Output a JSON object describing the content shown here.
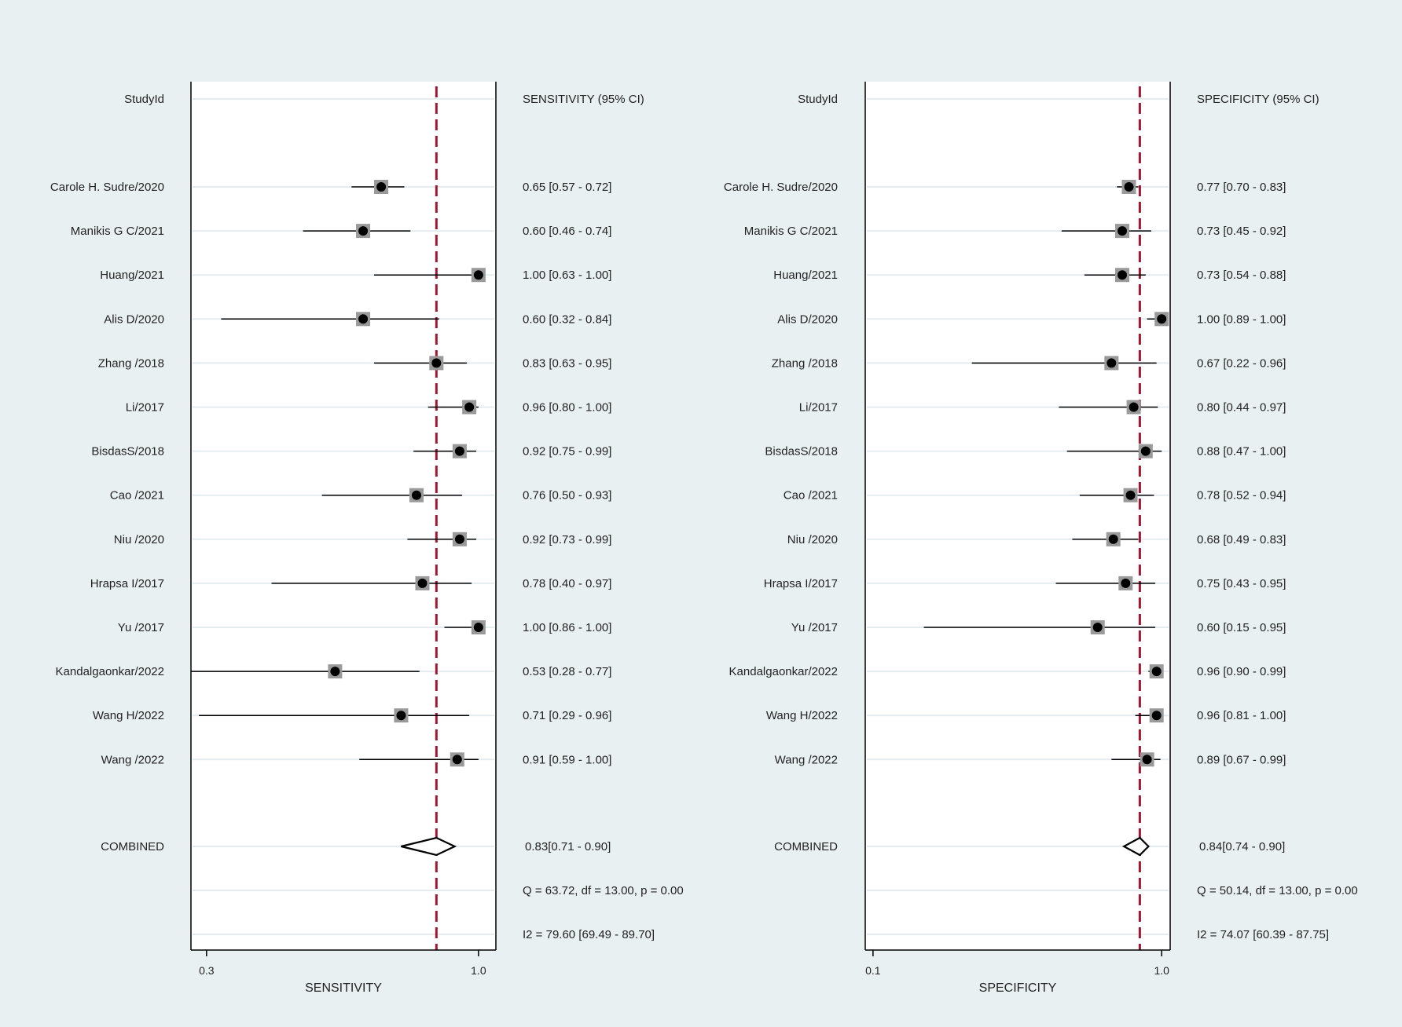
{
  "chart_data": [
    {
      "type": "forest",
      "measure": "sensitivity",
      "study_header": "StudyId",
      "ci_header": "SENSITIVITY (95% CI)",
      "xlabel": "SENSITIVITY",
      "scale": "log",
      "xlim": [
        0.28,
        1.08
      ],
      "ticks": [
        {
          "value": 0.3,
          "label": "0.3"
        },
        {
          "value": 1.0,
          "label": "1.0"
        }
      ],
      "reference_line": 0.83,
      "studies": [
        {
          "name": "Carole H. Sudre/2020",
          "est": 0.65,
          "lo": 0.57,
          "hi": 0.72,
          "text": "0.65 [0.57 - 0.72]"
        },
        {
          "name": "Manikis G C/2021",
          "est": 0.6,
          "lo": 0.46,
          "hi": 0.74,
          "text": "0.60 [0.46 - 0.74]"
        },
        {
          "name": "Huang/2021",
          "est": 1.0,
          "lo": 0.63,
          "hi": 1.0,
          "text": "1.00 [0.63 - 1.00]"
        },
        {
          "name": "Alis D/2020",
          "est": 0.6,
          "lo": 0.32,
          "hi": 0.84,
          "text": "0.60 [0.32 - 0.84]"
        },
        {
          "name": "Zhang /2018",
          "est": 0.83,
          "lo": 0.63,
          "hi": 0.95,
          "text": "0.83 [0.63 - 0.95]"
        },
        {
          "name": "Li/2017",
          "est": 0.96,
          "lo": 0.8,
          "hi": 1.0,
          "text": "0.96 [0.80 - 1.00]"
        },
        {
          "name": "BisdasS/2018",
          "est": 0.92,
          "lo": 0.75,
          "hi": 0.99,
          "text": "0.92 [0.75 - 0.99]"
        },
        {
          "name": "Cao /2021",
          "est": 0.76,
          "lo": 0.5,
          "hi": 0.93,
          "text": "0.76 [0.50 - 0.93]"
        },
        {
          "name": "Niu /2020",
          "est": 0.92,
          "lo": 0.73,
          "hi": 0.99,
          "text": "0.92 [0.73 - 0.99]"
        },
        {
          "name": "Hrapsa I/2017",
          "est": 0.78,
          "lo": 0.4,
          "hi": 0.97,
          "text": "0.78 [0.40 - 0.97]"
        },
        {
          "name": "Yu /2017",
          "est": 1.0,
          "lo": 0.86,
          "hi": 1.0,
          "text": "1.00 [0.86 - 1.00]"
        },
        {
          "name": "Kandalgaonkar/2022",
          "est": 0.53,
          "lo": 0.28,
          "hi": 0.77,
          "text": "0.53 [0.28 - 0.77]"
        },
        {
          "name": "Wang H/2022",
          "est": 0.71,
          "lo": 0.29,
          "hi": 0.96,
          "text": "0.71 [0.29 - 0.96]"
        },
        {
          "name": "Wang /2022",
          "est": 0.91,
          "lo": 0.59,
          "hi": 1.0,
          "text": "0.91 [0.59 - 1.00]"
        }
      ],
      "combined": {
        "name": "COMBINED",
        "est": 0.83,
        "lo": 0.71,
        "hi": 0.9,
        "text": "0.83[0.71 - 0.90]"
      },
      "q_stat": "Q = 63.72, df = 13.00, p =  0.00",
      "i2_stat": "I2 = 79.60 [69.49 - 89.70]"
    },
    {
      "type": "forest",
      "measure": "specificity",
      "study_header": "StudyId",
      "ci_header": "SPECIFICITY (95% CI)",
      "xlabel": "SPECIFICITY",
      "scale": "log",
      "xlim": [
        0.094,
        1.07
      ],
      "ticks": [
        {
          "value": 0.1,
          "label": "0.1"
        },
        {
          "value": 1.0,
          "label": "1.0"
        }
      ],
      "reference_line": 0.84,
      "studies": [
        {
          "name": "Carole H. Sudre/2020",
          "est": 0.77,
          "lo": 0.7,
          "hi": 0.83,
          "text": "0.77 [0.70 - 0.83]"
        },
        {
          "name": "Manikis G C/2021",
          "est": 0.73,
          "lo": 0.45,
          "hi": 0.92,
          "text": "0.73 [0.45 - 0.92]"
        },
        {
          "name": "Huang/2021",
          "est": 0.73,
          "lo": 0.54,
          "hi": 0.88,
          "text": "0.73 [0.54 - 0.88]"
        },
        {
          "name": "Alis D/2020",
          "est": 1.0,
          "lo": 0.89,
          "hi": 1.0,
          "text": "1.00 [0.89 - 1.00]"
        },
        {
          "name": "Zhang /2018",
          "est": 0.67,
          "lo": 0.22,
          "hi": 0.96,
          "text": "0.67 [0.22 - 0.96]"
        },
        {
          "name": "Li/2017",
          "est": 0.8,
          "lo": 0.44,
          "hi": 0.97,
          "text": "0.80 [0.44 - 0.97]"
        },
        {
          "name": "BisdasS/2018",
          "est": 0.88,
          "lo": 0.47,
          "hi": 1.0,
          "text": "0.88 [0.47 - 1.00]"
        },
        {
          "name": "Cao /2021",
          "est": 0.78,
          "lo": 0.52,
          "hi": 0.94,
          "text": "0.78 [0.52 - 0.94]"
        },
        {
          "name": "Niu /2020",
          "est": 0.68,
          "lo": 0.49,
          "hi": 0.83,
          "text": "0.68 [0.49 - 0.83]"
        },
        {
          "name": "Hrapsa I/2017",
          "est": 0.75,
          "lo": 0.43,
          "hi": 0.95,
          "text": "0.75 [0.43 - 0.95]"
        },
        {
          "name": "Yu /2017",
          "est": 0.6,
          "lo": 0.15,
          "hi": 0.95,
          "text": "0.60 [0.15 - 0.95]"
        },
        {
          "name": "Kandalgaonkar/2022",
          "est": 0.96,
          "lo": 0.9,
          "hi": 0.99,
          "text": "0.96 [0.90 - 0.99]"
        },
        {
          "name": "Wang H/2022",
          "est": 0.96,
          "lo": 0.81,
          "hi": 1.0,
          "text": "0.96 [0.81 - 1.00]"
        },
        {
          "name": "Wang /2022",
          "est": 0.89,
          "lo": 0.67,
          "hi": 0.99,
          "text": "0.89 [0.67 - 0.99]"
        }
      ],
      "combined": {
        "name": "COMBINED",
        "est": 0.84,
        "lo": 0.74,
        "hi": 0.9,
        "text": "0.84[0.74 - 0.90]"
      },
      "q_stat": "Q = 50.14, df = 13.00, p =  0.00",
      "i2_stat": "I2 = 74.07 [60.39 - 87.75]"
    }
  ],
  "colors": {
    "background": "#e9f0f2",
    "plot_bg": "#ffffff",
    "gridline": "#e4ecef",
    "reference_line": "#a0172f",
    "marker_box": "#9a9a9a",
    "point": "#000000",
    "text": "#222222"
  }
}
